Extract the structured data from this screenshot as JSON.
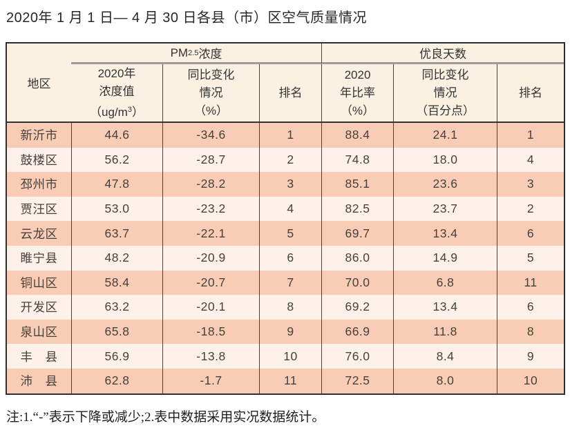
{
  "page": {
    "title": "2020年 1 月 1 日— 4 月 30 日各县（市）区空气质量情况",
    "footnote": "注:1.“-”表示下降或减少;2.表中数据采用实况数据统计。"
  },
  "colors": {
    "header_bg": "#fbf1e2",
    "stripe_dark": "#f8ccb5",
    "stripe_light": "#fdf1ea",
    "outer_border": "#2e2e2e",
    "inner_line": "#424242",
    "group_divider": "#9c9c9c",
    "text": "#46413c"
  },
  "table": {
    "corner_header": "地区",
    "groups": {
      "pm": {
        "prefix": "PM",
        "sub": "2.5",
        "suffix": " 浓度"
      },
      "good_days": {
        "label": "优良天数"
      }
    },
    "subheaders": {
      "pm_value": {
        "line1": "2020年",
        "line2": "浓度值",
        "unit_prefix": "（ug/m",
        "unit_sup": "3",
        "unit_suffix": "）"
      },
      "pm_change": {
        "line1": "同比变化",
        "line2": "情况",
        "line3": "（%）"
      },
      "pm_rank": "排名",
      "good_ratio": {
        "line1": "2020",
        "line2": "年比率",
        "line3": "（%）"
      },
      "good_change": {
        "line1": "同比变化",
        "line2": "情况",
        "line3": "（百分点）"
      },
      "good_rank": "排名"
    },
    "rows": [
      [
        "新沂市",
        "44.6",
        "-34.6",
        "1",
        "88.4",
        "24.1",
        "1"
      ],
      [
        "鼓楼区",
        "56.2",
        "-28.7",
        "2",
        "74.8",
        "18.0",
        "4"
      ],
      [
        "邳州市",
        "47.8",
        "-28.2",
        "3",
        "85.1",
        "23.6",
        "3"
      ],
      [
        "贾汪区",
        "53.0",
        "-23.2",
        "4",
        "82.5",
        "23.7",
        "2"
      ],
      [
        "云龙区",
        "63.7",
        "-22.1",
        "5",
        "69.7",
        "13.4",
        "6"
      ],
      [
        "睢宁县",
        "48.2",
        "-20.9",
        "6",
        "86.0",
        "14.9",
        "5"
      ],
      [
        "铜山区",
        "58.4",
        "-20.7",
        "7",
        "70.0",
        "6.8",
        "11"
      ],
      [
        "开发区",
        "63.2",
        "-20.1",
        "8",
        "69.2",
        "13.4",
        "6"
      ],
      [
        "泉山区",
        "65.8",
        "-18.5",
        "9",
        "66.9",
        "11.8",
        "8"
      ],
      [
        "丰　县",
        "56.9",
        "-13.8",
        "10",
        "76.0",
        "8.4",
        "9"
      ],
      [
        "沛　县",
        "62.8",
        "-1.7",
        "11",
        "72.5",
        "8.0",
        "10"
      ]
    ]
  }
}
